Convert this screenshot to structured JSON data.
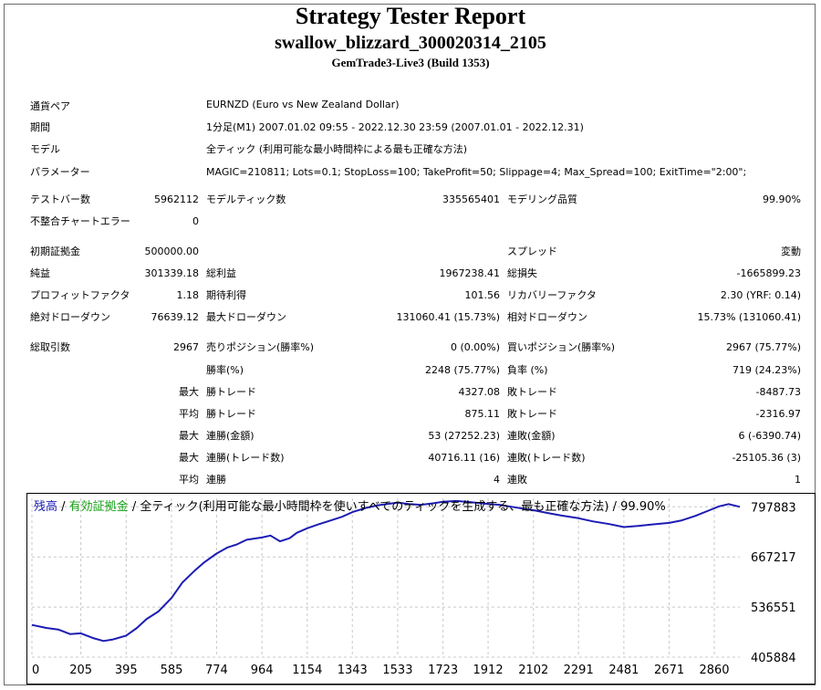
{
  "header": {
    "title": "Strategy Tester Report",
    "subtitle": "swallow_blizzard_300020314_2105",
    "server": "GemTrade3-Live3 (Build 1353)"
  },
  "settings": {
    "symbol_label": "通貨ペア",
    "symbol_value": "EURNZD (Euro vs New Zealand Dollar)",
    "period_label": "期間",
    "period_value": "1分足(M1) 2007.01.02 09:55 - 2022.12.30 23:59 (2007.01.01 - 2022.12.31)",
    "model_label": "モデル",
    "model_value": "全ティック (利用可能な最小時間枠による最も正確な方法)",
    "params_label": "パラメーター",
    "params_value": "MAGIC=210811; Lots=0.1; StopLoss=100; TakeProfit=50; Slippage=4; Max_Spread=100; ExitTime=\"2:00\";"
  },
  "stats": {
    "bars_label": "テストバー数",
    "bars_value": "5962112",
    "ticks_label": "モデルティック数",
    "ticks_value": "335565401",
    "quality_label": "モデリング品質",
    "quality_value": "99.90%",
    "mismatch_label": "不整合チャートエラー",
    "mismatch_value": "0",
    "deposit_label": "初期証拠金",
    "deposit_value": "500000.00",
    "spread_label": "スプレッド",
    "spread_value": "変動",
    "net_label": "純益",
    "net_value": "301339.18",
    "gross_profit_label": "総利益",
    "gross_profit_value": "1967238.41",
    "gross_loss_label": "総損失",
    "gross_loss_value": "-1665899.23",
    "pf_label": "プロフィットファクタ",
    "pf_value": "1.18",
    "expected_label": "期待利得",
    "expected_value": "101.56",
    "recovery_label": "リカバリーファクタ",
    "recovery_value": "2.30 (YRF: 0.14)",
    "abs_dd_label": "絶対ドローダウン",
    "abs_dd_value": "76639.12",
    "max_dd_label": "最大ドローダウン",
    "max_dd_value": "131060.41 (15.73%)",
    "rel_dd_label": "相対ドローダウン",
    "rel_dd_value": "15.73% (131060.41)",
    "total_trades_label": "総取引数",
    "total_trades_value": "2967",
    "short_label": "売りポジション(勝率%)",
    "short_value": "0 (0.00%)",
    "long_label": "買いポジション(勝率%)",
    "long_value": "2967 (75.77%)",
    "win_rate_label": "勝率(%)",
    "win_rate_value": "2248 (75.77%)",
    "loss_rate_label": "負率 (%)",
    "loss_rate_value": "719 (24.23%)",
    "max_word": "最大",
    "avg_word": "平均",
    "largest_win_label": "勝トレード",
    "largest_win_value": "4327.08",
    "largest_loss_label": "敗トレード",
    "largest_loss_value": "-8487.73",
    "avg_win_label": "勝トレード",
    "avg_win_value": "875.11",
    "avg_loss_label": "敗トレード",
    "avg_loss_value": "-2316.97",
    "consec_win_amt_label": "連勝(金額)",
    "consec_win_amt_value": "53 (27252.23)",
    "consec_loss_amt_label": "連敗(金額)",
    "consec_loss_amt_value": "6 (-6390.74)",
    "consec_win_trade_label": "連勝(トレード数)",
    "consec_win_trade_value": "40716.11 (16)",
    "consec_loss_trade_label": "連敗(トレード数)",
    "consec_loss_trade_value": "-25105.36 (3)",
    "avg_consec_win_label": "連勝",
    "avg_consec_win_value": "4",
    "avg_consec_loss_label": "連敗",
    "avg_consec_loss_value": "1"
  },
  "chart_data": {
    "type": "line",
    "legend": {
      "balance": "残高",
      "sep1": " / ",
      "equity": "有効証拠金",
      "sep2": " / ",
      "rest": "全ティック(利用可能な最小時間枠を使いすべてのティックを生成する、最も正確な方法) / 99.90%"
    },
    "xlim": [
      0,
      2967
    ],
    "ylim": [
      405884,
      820000
    ],
    "x_ticks": [
      0,
      205,
      395,
      585,
      774,
      964,
      1154,
      1343,
      1533,
      1723,
      1912,
      2102,
      2291,
      2481,
      2671,
      2860
    ],
    "y_ticks": [
      405884,
      536551,
      667217,
      797883
    ],
    "colors": {
      "balance": "#1c1cb4",
      "equity": "#16a016",
      "text": "#000000",
      "grid": "#c8c8c8"
    },
    "series": [
      {
        "name": "残高",
        "x": [
          0,
          60,
          110,
          160,
          205,
          260,
          300,
          340,
          395,
          440,
          480,
          530,
          585,
          630,
          680,
          720,
          774,
          820,
          860,
          900,
          964,
          1000,
          1040,
          1080,
          1110,
          1154,
          1200,
          1250,
          1300,
          1343,
          1400,
          1450,
          1500,
          1533,
          1580,
          1630,
          1680,
          1723,
          1780,
          1840,
          1900,
          1960,
          2020,
          2102,
          2160,
          2220,
          2291,
          2350,
          2420,
          2481,
          2540,
          2600,
          2671,
          2720,
          2780,
          2840,
          2880,
          2920,
          2967
        ],
        "y": [
          490000,
          482000,
          478000,
          466000,
          468000,
          455000,
          448000,
          452000,
          462000,
          482000,
          505000,
          525000,
          560000,
          600000,
          630000,
          652000,
          676000,
          692000,
          700000,
          712000,
          718000,
          723000,
          708000,
          716000,
          730000,
          742000,
          752000,
          762000,
          772000,
          784000,
          795000,
          802000,
          806000,
          809000,
          805000,
          803000,
          807000,
          811000,
          813000,
          810000,
          806000,
          803000,
          797000,
          789000,
          782000,
          775000,
          768000,
          760000,
          753000,
          745000,
          748000,
          752000,
          756000,
          762000,
          774000,
          789000,
          799000,
          805000,
          797883
        ]
      }
    ]
  }
}
